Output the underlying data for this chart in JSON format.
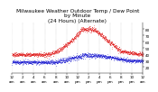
{
  "title_line1": "Milwaukee Weather Outdoor Temp / Dew Point",
  "title_line2": "by Minute",
  "title_line3": "(24 Hours) (Alternate)",
  "temp_color": "#dd0000",
  "dew_color": "#0000cc",
  "bg_color": "#ffffff",
  "grid_color": "#888888",
  "ylim": [
    10,
    90
  ],
  "yticks": [
    20,
    30,
    40,
    50,
    60,
    70,
    80
  ],
  "title_fontsize": 4.2,
  "tick_fontsize": 3.0,
  "n_points": 1440
}
